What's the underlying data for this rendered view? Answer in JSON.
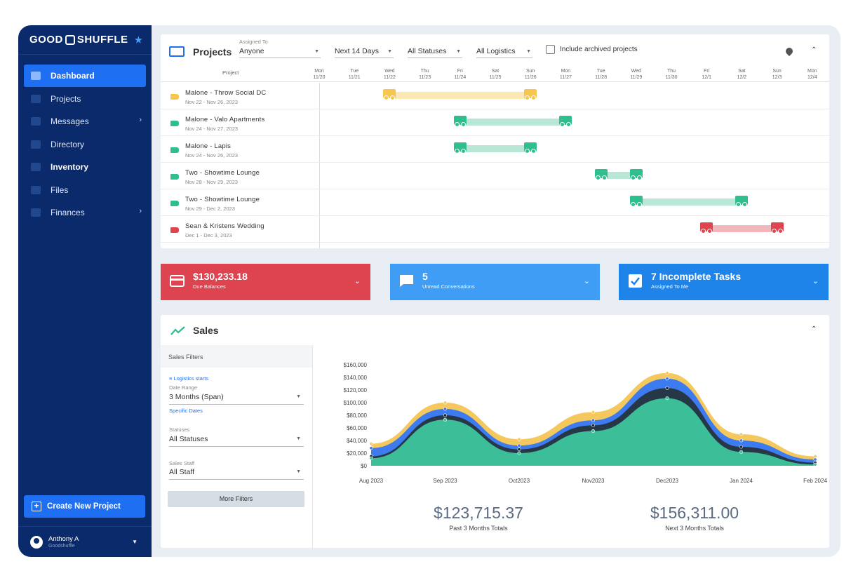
{
  "sidebar": {
    "logo_left": "GOOD",
    "logo_right": "SHUFFLE",
    "items": [
      {
        "label": "Dashboard"
      },
      {
        "label": "Projects"
      },
      {
        "label": "Messages"
      },
      {
        "label": "Directory"
      },
      {
        "label": "Inventory"
      },
      {
        "label": "Files"
      },
      {
        "label": "Finances"
      }
    ],
    "create_label": "Create New Project",
    "user_name": "Anthony A",
    "user_org": "Goodshuffle"
  },
  "projects": {
    "title": "Projects",
    "assigned_to_label": "Assigned To",
    "assigned_to_value": "Anyone",
    "range_value": "Next 14 Days",
    "status_value": "All Statuses",
    "logistics_value": "All Logistics",
    "archived_label": "Include archived projects",
    "column_project": "Project",
    "days": [
      {
        "dow": "Mon",
        "date": "11/20"
      },
      {
        "dow": "Tue",
        "date": "11/21"
      },
      {
        "dow": "Wed",
        "date": "11/22"
      },
      {
        "dow": "Thu",
        "date": "11/23"
      },
      {
        "dow": "Fri",
        "date": "11/24"
      },
      {
        "dow": "Sat",
        "date": "11/25"
      },
      {
        "dow": "Sun",
        "date": "11/26"
      },
      {
        "dow": "Mon",
        "date": "11/27"
      },
      {
        "dow": "Tue",
        "date": "11/28"
      },
      {
        "dow": "Wed",
        "date": "11/29"
      },
      {
        "dow": "Thu",
        "date": "11/30"
      },
      {
        "dow": "Fri",
        "date": "12/1"
      },
      {
        "dow": "Sat",
        "date": "12/2"
      },
      {
        "dow": "Sun",
        "date": "12/3"
      },
      {
        "dow": "Mon",
        "date": "12/4"
      }
    ],
    "rows": [
      {
        "name": "Malone - Throw Social DC",
        "dates": "Nov 22 - Nov 26, 2023",
        "color": "#f7c64e",
        "bar_color": "#fbe7b3",
        "start_day": 2,
        "end_day": 6
      },
      {
        "name": "Malone - Valo Apartments",
        "dates": "Nov 24 - Nov 27, 2023",
        "color": "#2fbf8f",
        "bar_color": "#b9e7d6",
        "start_day": 4,
        "end_day": 7
      },
      {
        "name": "Malone - Lapis",
        "dates": "Nov 24 - Nov 26, 2023",
        "color": "#2fbf8f",
        "bar_color": "#b9e7d6",
        "start_day": 4,
        "end_day": 6
      },
      {
        "name": "Two - Showtime Lounge",
        "dates": "Nov 28 - Nov 29, 2023",
        "color": "#2fbf8f",
        "bar_color": "#b9e7d6",
        "start_day": 8,
        "end_day": 9
      },
      {
        "name": "Two - Showtime Lounge",
        "dates": "Nov 29 - Dec 2, 2023",
        "color": "#2fbf8f",
        "bar_color": "#b9e7d6",
        "start_day": 9,
        "end_day": 12
      },
      {
        "name": "Sean & Kristens Wedding",
        "dates": "Dec 1 - Dec 3, 2023",
        "color": "#e0454f",
        "bar_color": "#f2b7bb",
        "start_day": 11,
        "end_day": 13
      }
    ]
  },
  "cards": [
    {
      "value": "$130,233.18",
      "label": "Due Balances",
      "color": "#dd4450"
    },
    {
      "value": "5",
      "label": "Unread Conversations",
      "color": "#3f9df5"
    },
    {
      "value": "7 Incomplete Tasks",
      "label": "Assigned To Me",
      "color": "#1f84ea"
    }
  ],
  "sales": {
    "title": "Sales",
    "filters_title": "Sales Filters",
    "logistics_link": "Logistics starts",
    "date_range_label": "Date Range",
    "date_range_value": "3 Months (Span)",
    "specific_dates_link": "Specific Dates",
    "statuses_label": "Statuses",
    "statuses_value": "All Statuses",
    "staff_label": "Sales Staff",
    "staff_value": "All Staff",
    "more_filters": "More Filters",
    "past_total": "$123,715.37",
    "past_label": "Past 3 Months Totals",
    "next_total": "$156,311.00",
    "next_label": "Next 3 Months Totals"
  },
  "chart_data": {
    "type": "area",
    "categories": [
      "Aug 2023",
      "Sep 2023",
      "Oct2023",
      "Nov2023",
      "Dec2023",
      "Jan 2024",
      "Feb 2024"
    ],
    "ylim": [
      0,
      160000
    ],
    "yticks": [
      "$160,000",
      "$140,000",
      "$120,000",
      "$100,000",
      "$80,000",
      "$60,000",
      "$40,000",
      "$20,000",
      "$0"
    ],
    "series": [
      {
        "values": [
          12000,
          73000,
          20000,
          55000,
          107000,
          22000,
          2000
        ],
        "color": "#3cbf98"
      },
      {
        "values": [
          15000,
          80000,
          26000,
          64000,
          123000,
          30000,
          5000
        ],
        "color": "#263847"
      },
      {
        "values": [
          28000,
          90000,
          32000,
          72000,
          138000,
          40000,
          10000
        ],
        "color": "#3d7cf0"
      },
      {
        "values": [
          35000,
          100000,
          42000,
          85000,
          147000,
          50000,
          15000
        ],
        "color": "#f5c85e"
      }
    ]
  }
}
